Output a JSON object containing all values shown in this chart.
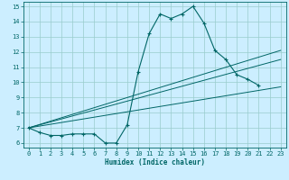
{
  "xlabel": "Humidex (Indice chaleur)",
  "bg_color": "#cceeff",
  "grid_color": "#99cccc",
  "line_color": "#006666",
  "xlim": [
    -0.5,
    23.5
  ],
  "ylim": [
    5.7,
    15.3
  ],
  "xticks": [
    0,
    1,
    2,
    3,
    4,
    5,
    6,
    7,
    8,
    9,
    10,
    11,
    12,
    13,
    14,
    15,
    16,
    17,
    18,
    19,
    20,
    21,
    22,
    23
  ],
  "yticks": [
    6,
    7,
    8,
    9,
    10,
    11,
    12,
    13,
    14,
    15
  ],
  "curve1_x": [
    0,
    1,
    2,
    3,
    4,
    5,
    6,
    7,
    8,
    9,
    10,
    11,
    12,
    13,
    14,
    15,
    16,
    17,
    18,
    19,
    20,
    21
  ],
  "curve1_y": [
    7.0,
    6.7,
    6.5,
    6.5,
    6.6,
    6.6,
    6.6,
    6.0,
    6.0,
    7.2,
    10.7,
    13.2,
    14.5,
    14.2,
    14.5,
    15.0,
    13.9,
    12.1,
    11.5,
    10.5,
    10.2,
    9.8
  ],
  "trend1_x": [
    0,
    23
  ],
  "trend1_y": [
    7.0,
    9.7
  ],
  "trend2_x": [
    0,
    23
  ],
  "trend2_y": [
    7.0,
    11.5
  ],
  "trend3_x": [
    0,
    23
  ],
  "trend3_y": [
    7.0,
    12.1
  ]
}
